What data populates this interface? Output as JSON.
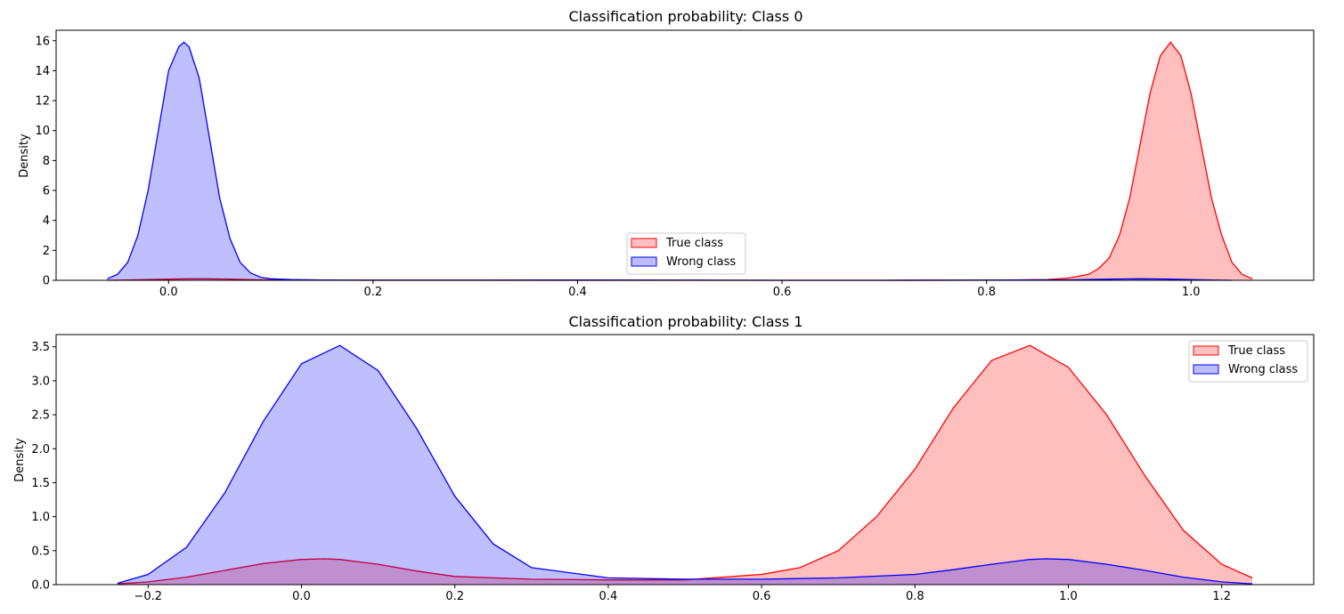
{
  "chart_data": [
    {
      "type": "area",
      "title": "Classification probability: Class 0",
      "xlabel": "",
      "ylabel": "Density",
      "xlim": [
        -0.11,
        1.12
      ],
      "ylim": [
        0,
        16.7
      ],
      "x_ticks": [
        0.0,
        0.2,
        0.4,
        0.6,
        0.8,
        1.0
      ],
      "x_tick_labels": [
        "0.0",
        "0.2",
        "0.4",
        "0.6",
        "0.8",
        "1.0"
      ],
      "y_ticks": [
        0,
        2,
        4,
        6,
        8,
        10,
        12,
        14,
        16
      ],
      "y_tick_labels": [
        "0",
        "2",
        "4",
        "6",
        "8",
        "10",
        "12",
        "14",
        "16"
      ],
      "legend_position": "lower-center",
      "series": [
        {
          "name": "True class",
          "color": "#ff0000",
          "fill": "#ffc0c0",
          "x": [
            -0.06,
            -0.04,
            -0.02,
            0.0,
            0.02,
            0.04,
            0.06,
            0.08,
            0.1,
            0.12,
            0.15,
            0.2,
            0.3,
            0.4,
            0.5,
            0.6,
            0.7,
            0.8,
            0.86,
            0.88,
            0.9,
            0.91,
            0.92,
            0.93,
            0.94,
            0.95,
            0.96,
            0.97,
            0.98,
            0.99,
            1.0,
            1.01,
            1.02,
            1.03,
            1.04,
            1.05,
            1.06
          ],
          "y": [
            0.0,
            0.02,
            0.05,
            0.08,
            0.1,
            0.1,
            0.08,
            0.04,
            0.02,
            0.01,
            0.01,
            0.0,
            0.0,
            0.0,
            0.0,
            0.0,
            0.0,
            0.01,
            0.05,
            0.15,
            0.4,
            0.8,
            1.5,
            3.0,
            5.5,
            9.0,
            12.5,
            15.0,
            15.9,
            15.0,
            12.5,
            9.0,
            5.5,
            3.0,
            1.2,
            0.4,
            0.1
          ]
        },
        {
          "name": "Wrong class",
          "color": "#0000ff",
          "fill": "#bcbcff",
          "x": [
            -0.06,
            -0.05,
            -0.04,
            -0.03,
            -0.02,
            -0.01,
            0.0,
            0.01,
            0.015,
            0.02,
            0.03,
            0.04,
            0.05,
            0.06,
            0.07,
            0.08,
            0.09,
            0.1,
            0.12,
            0.15,
            0.2,
            0.3,
            0.4,
            0.5,
            0.6,
            0.7,
            0.8,
            0.88,
            0.92,
            0.95,
            0.98,
            1.0,
            1.02,
            1.04
          ],
          "y": [
            0.1,
            0.4,
            1.2,
            3.0,
            6.0,
            10.0,
            14.0,
            15.6,
            15.9,
            15.6,
            13.5,
            9.5,
            5.5,
            2.8,
            1.2,
            0.5,
            0.2,
            0.1,
            0.05,
            0.02,
            0.01,
            0.01,
            0.02,
            0.01,
            0.0,
            0.0,
            0.01,
            0.03,
            0.08,
            0.1,
            0.08,
            0.05,
            0.02,
            0.0
          ]
        }
      ]
    },
    {
      "type": "area",
      "title": "Classification probability: Class 1",
      "xlabel": "",
      "ylabel": "Density",
      "xlim": [
        -0.32,
        1.32
      ],
      "ylim": [
        0,
        3.68
      ],
      "x_ticks": [
        -0.2,
        0.0,
        0.2,
        0.4,
        0.6,
        0.8,
        1.0,
        1.2
      ],
      "x_tick_labels": [
        "−0.2",
        "0.0",
        "0.2",
        "0.4",
        "0.6",
        "0.8",
        "1.0",
        "1.2"
      ],
      "y_ticks": [
        0.0,
        0.5,
        1.0,
        1.5,
        2.0,
        2.5,
        3.0,
        3.5
      ],
      "y_tick_labels": [
        "0.0",
        "0.5",
        "1.0",
        "1.5",
        "2.0",
        "2.5",
        "3.0",
        "3.5"
      ],
      "legend_position": "upper-right",
      "series": [
        {
          "name": "True class",
          "color": "#ff0000",
          "fill": "#ffc0c0",
          "x": [
            -0.24,
            -0.2,
            -0.15,
            -0.1,
            -0.05,
            0.0,
            0.03,
            0.05,
            0.1,
            0.15,
            0.2,
            0.3,
            0.4,
            0.5,
            0.6,
            0.65,
            0.7,
            0.75,
            0.8,
            0.85,
            0.9,
            0.95,
            1.0,
            1.05,
            1.1,
            1.15,
            1.2,
            1.24
          ],
          "y": [
            0.01,
            0.04,
            0.11,
            0.21,
            0.31,
            0.37,
            0.38,
            0.37,
            0.3,
            0.2,
            0.12,
            0.08,
            0.07,
            0.07,
            0.15,
            0.25,
            0.5,
            1.0,
            1.7,
            2.6,
            3.3,
            3.52,
            3.2,
            2.5,
            1.6,
            0.8,
            0.3,
            0.1
          ]
        },
        {
          "name": "Wrong class",
          "color": "#0000ff",
          "fill": "#bcbcff",
          "x": [
            -0.24,
            -0.2,
            -0.15,
            -0.1,
            -0.05,
            0.0,
            0.05,
            0.1,
            0.15,
            0.2,
            0.25,
            0.3,
            0.4,
            0.5,
            0.6,
            0.7,
            0.8,
            0.85,
            0.9,
            0.95,
            0.97,
            1.0,
            1.05,
            1.1,
            1.15,
            1.2,
            1.24
          ],
          "y": [
            0.02,
            0.15,
            0.55,
            1.35,
            2.4,
            3.25,
            3.52,
            3.15,
            2.3,
            1.3,
            0.6,
            0.25,
            0.1,
            0.08,
            0.08,
            0.1,
            0.15,
            0.22,
            0.3,
            0.37,
            0.38,
            0.37,
            0.3,
            0.21,
            0.11,
            0.04,
            0.01
          ]
        }
      ]
    }
  ]
}
